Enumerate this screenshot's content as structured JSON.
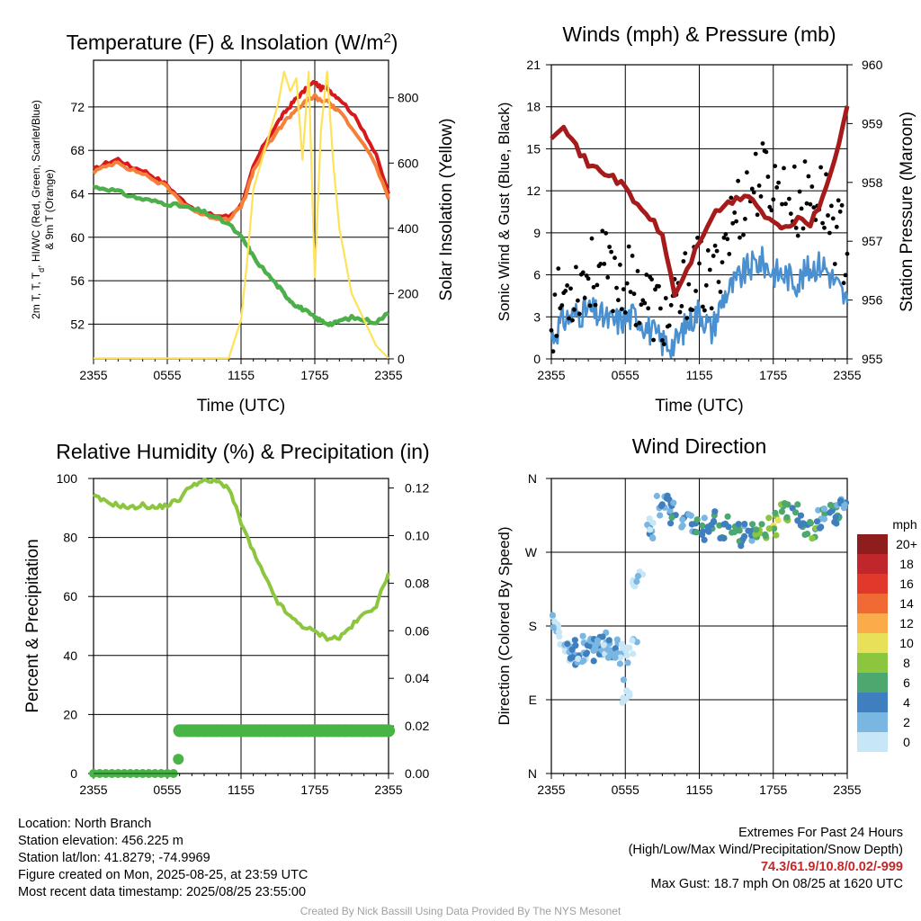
{
  "chart_data": [
    {
      "id": "temp",
      "type": "line",
      "title": "Temperature (F) & Insolation (W/m²)",
      "ylabel": [
        "2m T, T",
        "d",
        ", HI/WC (Red, Green, Scarlet/Blue)",
        "& 9m T (Orange)"
      ],
      "ylabel_right": "Solar Insolation (Yellow)",
      "xlabel": "Time (UTC)",
      "x_ticks": [
        "2355",
        "0555",
        "1155",
        "1755",
        "2355"
      ],
      "y_ticks": [
        52,
        56,
        60,
        64,
        68,
        72
      ],
      "y2_ticks": [
        0,
        200,
        400,
        600,
        800
      ],
      "ylim": [
        48.8,
        76.3
      ],
      "y2lim": [
        0,
        915
      ],
      "x": [
        0,
        1,
        2,
        3,
        4,
        5,
        6,
        7,
        8,
        9,
        10,
        11,
        12,
        12.5,
        13,
        14,
        15,
        15.5,
        16,
        16.5,
        17,
        17.5,
        18,
        18.5,
        19,
        19.5,
        20,
        21,
        22,
        23,
        24
      ],
      "series": [
        {
          "name": "2m T",
          "color": "#d7191c",
          "values": [
            66.2,
            66.8,
            67.2,
            66.5,
            66.2,
            65.5,
            64.8,
            63.6,
            62.8,
            62.2,
            62.0,
            61.9,
            63.0,
            64.5,
            66.5,
            68.8,
            70.6,
            71.4,
            72.1,
            72.8,
            73.3,
            73.9,
            74.3,
            73.7,
            73.8,
            73.2,
            72.8,
            71.5,
            69.8,
            67.5,
            64.0
          ]
        },
        {
          "name": "9m T",
          "color": "#f4803a",
          "values": [
            66.0,
            66.5,
            67.0,
            66.2,
            65.9,
            65.2,
            64.6,
            63.4,
            62.6,
            62.0,
            61.8,
            61.7,
            62.8,
            64.2,
            66.1,
            68.2,
            69.8,
            70.6,
            71.2,
            71.8,
            72.2,
            72.7,
            73.0,
            72.5,
            72.6,
            72.0,
            71.5,
            70.2,
            68.6,
            66.5,
            63.5
          ]
        },
        {
          "name": "Td",
          "color": "#4daf4a",
          "values": [
            64.6,
            64.5,
            64.2,
            63.8,
            63.5,
            63.3,
            63.1,
            62.9,
            62.6,
            62.3,
            61.8,
            61.2,
            60.0,
            59.2,
            58.2,
            56.8,
            55.5,
            54.8,
            54.2,
            53.7,
            53.4,
            53.0,
            52.6,
            52.3,
            52.1,
            52.0,
            52.3,
            52.6,
            52.4,
            52.2,
            53.0
          ]
        },
        {
          "name": "Insolation",
          "axis": "y2",
          "color": "#fde25a",
          "values": [
            2,
            2,
            2,
            2,
            2,
            2,
            2,
            2,
            2,
            2,
            2,
            2,
            120,
            300,
            520,
            650,
            780,
            880,
            820,
            860,
            610,
            880,
            250,
            700,
            880,
            600,
            400,
            200,
            120,
            40,
            2
          ]
        }
      ]
    },
    {
      "id": "wind",
      "type": "line",
      "title": "Winds (mph) & Pressure (mb)",
      "ylabel": "Sonic Wind & Gust (Blue, Black)",
      "ylabel_right": "Station Pressure (Maroon)",
      "xlabel": "Time (UTC)",
      "x_ticks": [
        "2355",
        "0555",
        "1155",
        "1755",
        "2355"
      ],
      "y_ticks": [
        0,
        3,
        6,
        9,
        12,
        15,
        18,
        21
      ],
      "y2_ticks": [
        955,
        956,
        957,
        958,
        959,
        960
      ],
      "ylim": [
        0,
        21
      ],
      "y2lim": [
        955,
        960
      ],
      "x": [
        0,
        1,
        2,
        3,
        4,
        5,
        6,
        7,
        8,
        9,
        10,
        11,
        12,
        13,
        14,
        15,
        16,
        17,
        18,
        19,
        20,
        21,
        22,
        23,
        24
      ],
      "series": [
        {
          "name": "Sonic Wind",
          "color": "#4a90d0",
          "values": [
            1.5,
            2.8,
            3.2,
            3.5,
            3.0,
            2.6,
            2.9,
            3.1,
            2.0,
            1.2,
            1.0,
            2.5,
            3.5,
            2.0,
            4.5,
            5.5,
            6.5,
            7.0,
            6.2,
            6.0,
            5.5,
            6.5,
            6.8,
            5.5,
            4.0
          ]
        },
        {
          "name": "Gust",
          "color": "#000000",
          "values": [
            3.0,
            4.5,
            5.5,
            6.0,
            6.5,
            6.0,
            5.5,
            5.0,
            4.0,
            3.0,
            3.0,
            5.5,
            6.0,
            5.0,
            8.5,
            10.5,
            12.0,
            13.0,
            12.5,
            11.5,
            11.0,
            12.0,
            11.5,
            9.5,
            7.5
          ]
        },
        {
          "name": "Pressure",
          "axis": "y2",
          "color": "#a51b1b",
          "values": [
            958.8,
            959.0,
            958.6,
            958.3,
            958.2,
            958.1,
            957.9,
            957.6,
            957.4,
            957.1,
            956.1,
            956.5,
            957.0,
            957.4,
            957.6,
            957.7,
            957.8,
            957.5,
            957.3,
            957.2,
            957.4,
            957.3,
            957.7,
            958.4,
            959.3
          ]
        }
      ]
    },
    {
      "id": "rh",
      "type": "line",
      "title": "Relative Humidity (%) & Precipitation (in)",
      "ylabel": "Percent & Precipitation",
      "ylim": [
        0,
        100
      ],
      "y2lim": [
        0,
        0.124
      ],
      "x_ticks": [
        "2355",
        "0555",
        "1155",
        "1755",
        "2355"
      ],
      "y_ticks": [
        0,
        20,
        40,
        60,
        80,
        100
      ],
      "y2_ticks": [
        "0.00",
        "0.02",
        "0.04",
        "0.06",
        "0.08",
        "0.10",
        "0.12"
      ],
      "x": [
        0,
        1,
        2,
        3,
        4,
        5,
        6,
        7,
        8,
        9,
        10,
        11,
        12,
        13,
        14,
        15,
        16,
        17,
        18,
        19,
        20,
        21,
        22,
        23,
        24
      ],
      "series": [
        {
          "name": "RH",
          "color": "#8cc63f",
          "values": [
            94,
            92,
            91,
            90,
            91,
            90,
            91,
            93,
            98,
            99,
            99,
            97,
            85,
            75,
            66,
            58,
            53,
            50,
            48,
            46,
            46,
            50,
            54,
            57,
            68
          ]
        },
        {
          "name": "Precipitation",
          "axis": "y2",
          "color": "#48b445",
          "values": [
            0,
            0,
            0,
            0,
            0,
            0,
            0,
            0.018,
            0.018,
            0.018,
            0.018,
            0.018,
            0.018,
            0.018,
            0.018,
            0.018,
            0.018,
            0.018,
            0.018,
            0.018,
            0.018,
            0.018,
            0.018,
            0.018,
            0.018
          ]
        }
      ]
    },
    {
      "id": "dir",
      "type": "scatter",
      "title": "Wind Direction",
      "ylabel": "Direction (Colored By Speed)",
      "x_ticks": [
        "2355",
        "0555",
        "1155",
        "1755",
        "2355"
      ],
      "y_ticks": [
        "N",
        "E",
        "S",
        "W",
        "N"
      ],
      "ylim": [
        0,
        360
      ],
      "colorbar": {
        "title": "mph",
        "labels": [
          "20+",
          "18",
          "16",
          "14",
          "12",
          "10",
          "8",
          "6",
          "4",
          "2",
          "0"
        ],
        "colors": [
          "#8e1d1d",
          "#c0272d",
          "#e0392b",
          "#f26a33",
          "#fbab4a",
          "#e9e05a",
          "#8cc63f",
          "#4da86f",
          "#3f7fbf",
          "#7ab6e2",
          "#c7e6f6"
        ]
      },
      "x": [
        0.5,
        1.0,
        1.5,
        2.0,
        2.5,
        3.0,
        3.5,
        4.0,
        4.5,
        5.0,
        5.5,
        6.0,
        6.5,
        7.0,
        8.0,
        9.0,
        10.0,
        11.0,
        12.0,
        13.0,
        14.0,
        15.0,
        16.0,
        17.0,
        18.0,
        19.0,
        20.0,
        21.0,
        22.0,
        23.0,
        23.5
      ],
      "values": [
        180,
        160,
        150,
        145,
        150,
        160,
        150,
        155,
        160,
        150,
        145,
        100,
        150,
        240,
        300,
        330,
        320,
        310,
        300,
        305,
        300,
        290,
        295,
        300,
        305,
        320,
        315,
        300,
        310,
        315,
        320
      ],
      "speeds": [
        1,
        1,
        3,
        4,
        3,
        4,
        3,
        4,
        3,
        4,
        2,
        1,
        2,
        2,
        3,
        4,
        5,
        4,
        5,
        6,
        7,
        6,
        5,
        8,
        9,
        7,
        6,
        7,
        5,
        6,
        4
      ]
    }
  ],
  "info": {
    "location": "Location: North Branch",
    "elevation": "Station elevation: 456.225 m",
    "latlon": "Station lat/lon: 41.8279; -74.9969",
    "created": "Figure created on Mon, 2025-08-25, at 23:59 UTC",
    "recent": "Most recent data timestamp: 2025/08/25 23:55:00"
  },
  "extremes": {
    "title": "Extremes For Past 24 Hours",
    "subtitle": "(High/Low/Max Wind/Precipitation/Snow Depth)",
    "values": "74.3/61.9/10.8/0.02/-999",
    "gust": "Max Gust: 18.7 mph On 08/25 at 1620 UTC"
  },
  "credit": "Created By Nick Bassill Using Data Provided By The NYS Mesonet"
}
